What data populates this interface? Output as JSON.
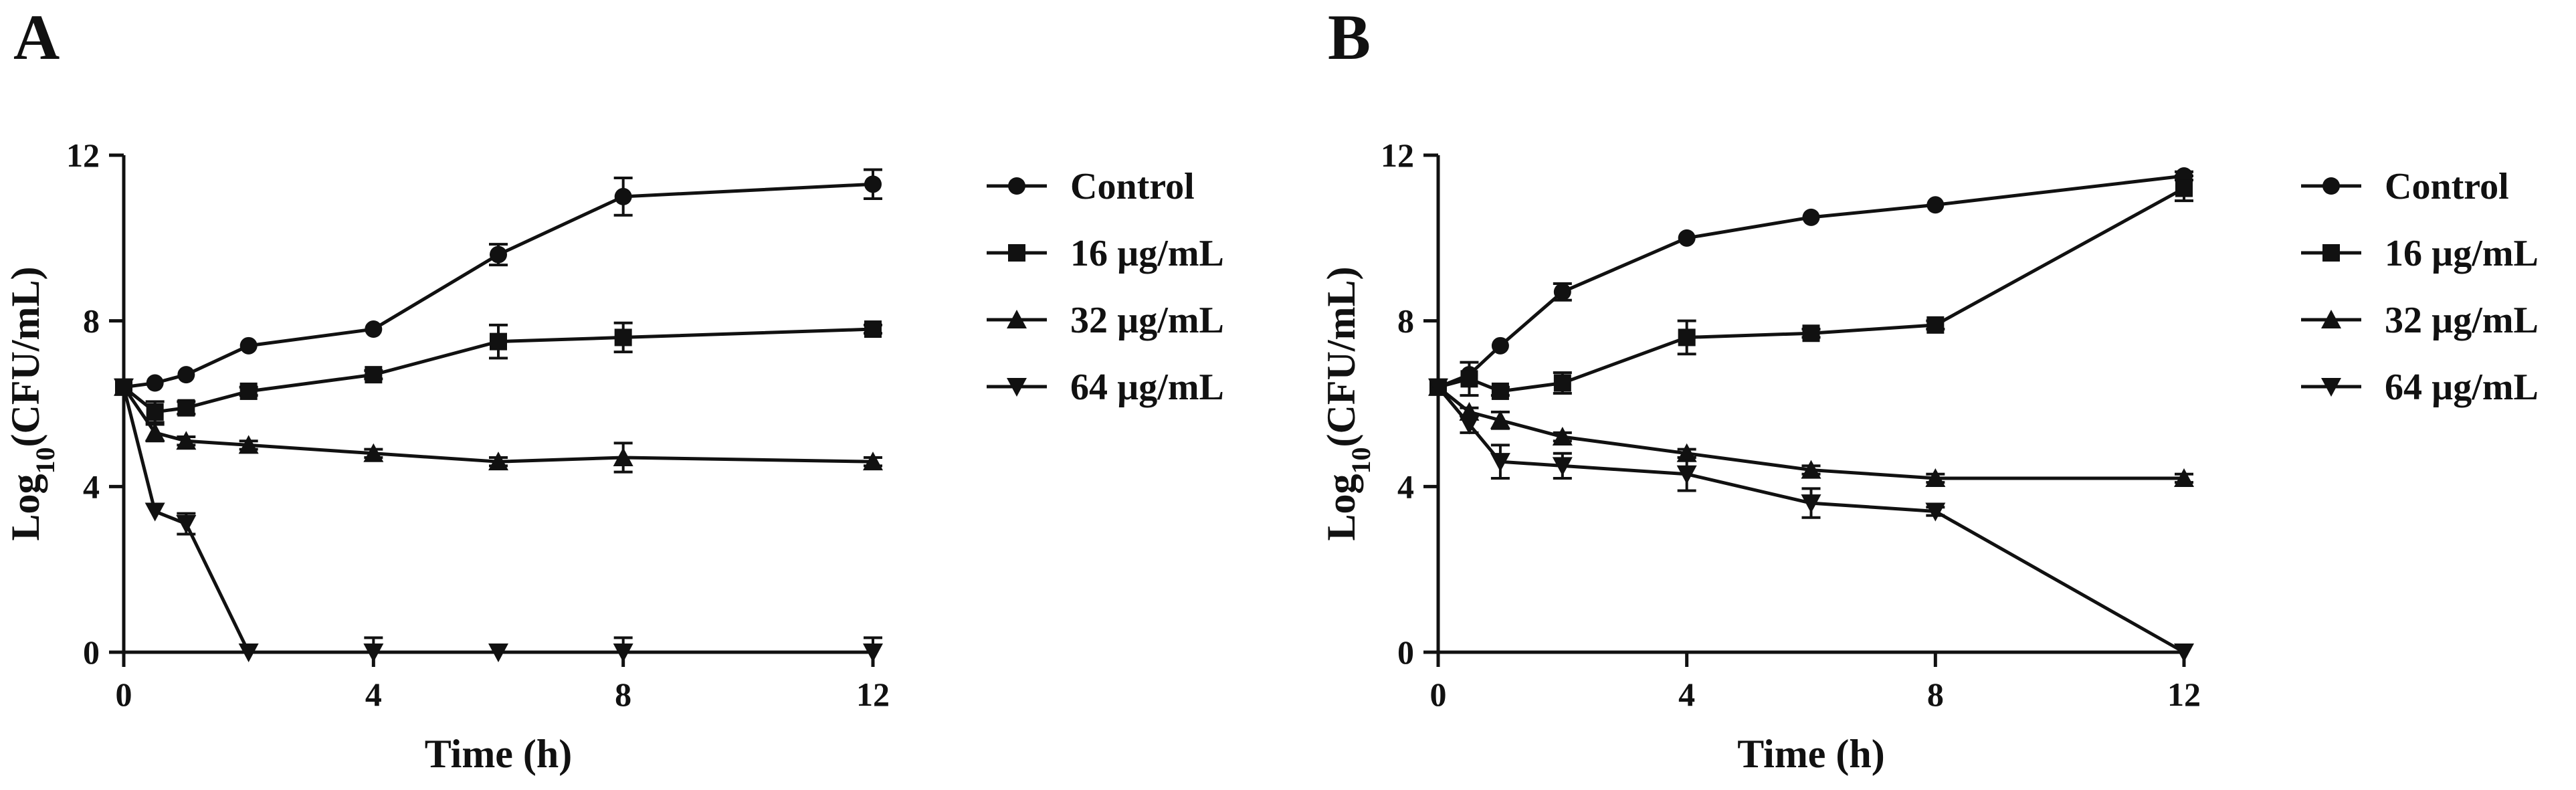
{
  "figure": {
    "panels": [
      "A",
      "B"
    ]
  },
  "colors": {
    "ink": "#111111",
    "background": "#ffffff"
  },
  "chart_data": [
    {
      "panel": "A",
      "type": "line",
      "title": "",
      "xlabel": "Time (h)",
      "ylabel_main": "Log",
      "ylabel_sub": "10",
      "ylabel_rest": "(CFU/mL)",
      "xlim": [
        0,
        12
      ],
      "ylim": [
        0,
        12
      ],
      "xticks": [
        0,
        4,
        8,
        12
      ],
      "yticks": [
        0,
        4,
        8,
        12
      ],
      "legend_position": "right",
      "series": [
        {
          "name": "Control",
          "marker": "circle",
          "x": [
            0,
            0.5,
            1,
            2,
            4,
            6,
            8,
            12
          ],
          "y": [
            6.4,
            6.5,
            6.7,
            7.4,
            7.8,
            9.6,
            11.0,
            11.3
          ],
          "err": [
            0,
            0,
            0,
            0,
            0,
            0.25,
            0.45,
            0.35
          ]
        },
        {
          "name": "16 µg/mL",
          "marker": "square",
          "x": [
            0,
            0.5,
            1,
            2,
            4,
            6,
            8,
            12
          ],
          "y": [
            6.4,
            5.8,
            5.9,
            6.3,
            6.7,
            7.5,
            7.6,
            7.8
          ],
          "err": [
            0,
            0.25,
            0.15,
            0.1,
            0.1,
            0.4,
            0.35,
            0.1
          ]
        },
        {
          "name": "32 µg/mL",
          "marker": "triangle-up",
          "x": [
            0,
            0.5,
            1,
            2,
            4,
            6,
            8,
            12
          ],
          "y": [
            6.4,
            5.3,
            5.1,
            5.0,
            4.8,
            4.6,
            4.7,
            4.6
          ],
          "err": [
            0,
            0.2,
            0.1,
            0.1,
            0.1,
            0.1,
            0.35,
            0.1
          ]
        },
        {
          "name": "64 µg/mL",
          "marker": "triangle-down",
          "x": [
            0,
            0.5,
            1,
            2,
            4,
            6,
            8,
            12
          ],
          "y": [
            6.4,
            3.4,
            3.1,
            0,
            0,
            0,
            0,
            0
          ],
          "err": [
            0,
            0,
            0.25,
            0,
            0.35,
            0,
            0.35,
            0.35
          ]
        }
      ]
    },
    {
      "panel": "B",
      "type": "line",
      "title": "",
      "xlabel": "Time (h)",
      "ylabel_main": "Log",
      "ylabel_sub": "10",
      "ylabel_rest": "(CFU/mL)",
      "xlim": [
        0,
        12
      ],
      "ylim": [
        0,
        12
      ],
      "xticks": [
        0,
        4,
        8,
        12
      ],
      "yticks": [
        0,
        4,
        8,
        12
      ],
      "legend_position": "right",
      "series": [
        {
          "name": "Control",
          "marker": "circle",
          "x": [
            0,
            0.5,
            1,
            2,
            4,
            6,
            8,
            12
          ],
          "y": [
            6.4,
            6.7,
            7.4,
            8.7,
            10.0,
            10.5,
            10.8,
            11.5
          ],
          "err": [
            0,
            0,
            0,
            0.2,
            0,
            0,
            0,
            0.1
          ]
        },
        {
          "name": "16 µg/mL",
          "marker": "square",
          "x": [
            0,
            0.5,
            1,
            2,
            4,
            6,
            8,
            12
          ],
          "y": [
            6.4,
            6.6,
            6.3,
            6.5,
            7.6,
            7.7,
            7.9,
            11.2
          ],
          "err": [
            0,
            0.4,
            0.1,
            0.25,
            0.4,
            0.1,
            0.1,
            0.3
          ]
        },
        {
          "name": "32 µg/mL",
          "marker": "triangle-up",
          "x": [
            0,
            0.5,
            1,
            2,
            4,
            6,
            8,
            12
          ],
          "y": [
            6.4,
            5.8,
            5.6,
            5.2,
            4.8,
            4.4,
            4.2,
            4.2
          ],
          "err": [
            0,
            0.1,
            0.2,
            0.1,
            0.1,
            0.1,
            0.1,
            0.1
          ]
        },
        {
          "name": "64 µg/mL",
          "marker": "triangle-down",
          "x": [
            0,
            0.5,
            1,
            2,
            4,
            6,
            8,
            12
          ],
          "y": [
            6.4,
            5.5,
            4.6,
            4.5,
            4.3,
            3.6,
            3.4,
            0
          ],
          "err": [
            0,
            0.2,
            0.4,
            0.3,
            0.4,
            0.35,
            0.1,
            0
          ]
        }
      ]
    }
  ]
}
